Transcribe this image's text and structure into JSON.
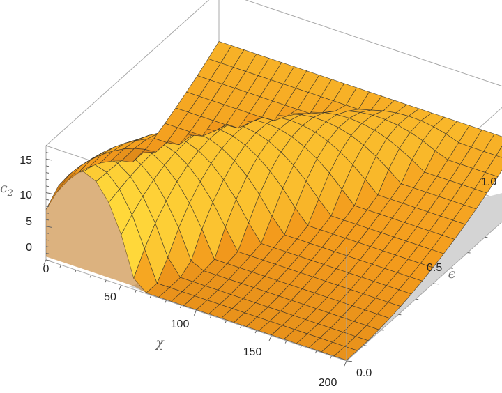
{
  "chart_data": {
    "type": "surface3d",
    "title": "",
    "xlabel": "χ",
    "ylabel": "ϵ",
    "zlabel_base": "c",
    "zlabel_sub": "2",
    "xlim": [
      0,
      200
    ],
    "ylim": [
      0,
      1
    ],
    "zlim": [
      0,
      17
    ],
    "x_ticks": [
      "0",
      "50",
      "100",
      "150",
      "200"
    ],
    "y_ticks": [
      "0.0",
      "0.5",
      "1.0"
    ],
    "z_ticks": [
      "0",
      "5",
      "10",
      "15"
    ],
    "surface_note": "c2 peaks near 15 at χ≈25 for ϵ≈0, the ridge shifts to larger χ as ϵ grows and flattens to ≈9.5 at ϵ=1; surface clipped at c2=0 (gray floor region)",
    "grid": false,
    "colors": {
      "surface_low": "#8a4a10",
      "surface_mid": "#f39a1c",
      "surface_high": "#ffd83a",
      "clip_floor": "#d4d4d4",
      "box": "#a8a8a8",
      "mesh": "#2a2a2a"
    }
  }
}
